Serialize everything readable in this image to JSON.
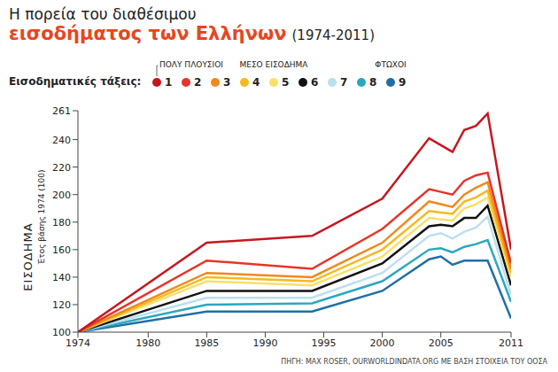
{
  "chart_data": {
    "type": "line",
    "title": [
      "Η πορεία του διαθέσιμου",
      "εισοδήματος των Ελλήνων",
      "(1974-2011)"
    ],
    "y_label": [
      "ΕΙΣΟΔΗΜΑ",
      "Έτος βάσης 1974 (100)"
    ],
    "legend_title": "Εισοδηματικές τάξεις:",
    "annotations": [
      "ΠΟΛΥ ΠΛΟΥΣΙΟΙ",
      "ΜΕΣΟ ΕΙΣΟΔΗΜΑ",
      "ΦΤΩΧΟΙ"
    ],
    "source": "ΠΗΓΗ: MAX ROSER, OURWORLDINDATA.ORG ΜΕ ΒΑΣΗ ΣΤΟΙΧΕΙΑ ΤΟΥ ΟΟΣΑ",
    "x": [
      1974,
      1985,
      1994,
      2000,
      2004,
      2005,
      2006,
      2007,
      2008,
      2009,
      2011
    ],
    "series": [
      {
        "name": "1",
        "color": "#c8161e",
        "values": [
          100,
          165,
          170,
          197,
          241,
          236,
          231,
          247,
          250,
          259,
          160
        ]
      },
      {
        "name": "2",
        "color": "#e8332a",
        "values": [
          100,
          152,
          146,
          175,
          204,
          202,
          200,
          210,
          214,
          216,
          150
        ]
      },
      {
        "name": "3",
        "color": "#f08a1c",
        "values": [
          100,
          143,
          140,
          165,
          195,
          193,
          191,
          200,
          205,
          209,
          146
        ]
      },
      {
        "name": "4",
        "color": "#f7b91e",
        "values": [
          100,
          140,
          137,
          160,
          188,
          187,
          186,
          195,
          198,
          203,
          143
        ]
      },
      {
        "name": "5",
        "color": "#f9e06a",
        "values": [
          100,
          137,
          134,
          155,
          183,
          182,
          181,
          190,
          193,
          198,
          140
        ]
      },
      {
        "name": "6",
        "color": "#111111",
        "values": [
          100,
          130,
          130,
          150,
          177,
          178,
          177,
          183,
          183,
          192,
          134
        ]
      },
      {
        "name": "7",
        "color": "#bcdfee",
        "values": [
          100,
          125,
          125,
          143,
          170,
          172,
          168,
          173,
          176,
          184,
          127
        ]
      },
      {
        "name": "8",
        "color": "#2aa8bf",
        "values": [
          100,
          120,
          121,
          137,
          160,
          161,
          158,
          162,
          164,
          167,
          122
        ]
      },
      {
        "name": "9",
        "color": "#1f6fa5",
        "values": [
          100,
          115,
          115,
          130,
          153,
          155,
          149,
          152,
          152,
          152,
          110
        ]
      }
    ],
    "xlim": [
      1974,
      2011
    ],
    "xticks": [
      1974,
      1980,
      1985,
      1990,
      1995,
      2000,
      2005,
      2011
    ],
    "ylim": [
      100,
      261
    ],
    "yticks": [
      100,
      120,
      140,
      160,
      180,
      200,
      220,
      240,
      261
    ],
    "grid": false,
    "legend": "top"
  }
}
